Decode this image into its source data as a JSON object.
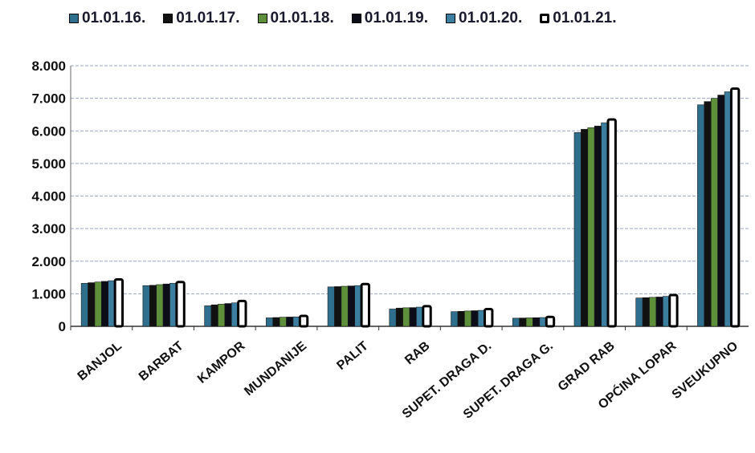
{
  "chart_data": {
    "type": "bar",
    "categories": [
      "BANJOL",
      "BARBAT",
      "KAMPOR",
      "MUNDANIJE",
      "PALIT",
      "RAB",
      "SUPET. DRAGA D.",
      "SUPET. DRAGA G.",
      "GRAD RAB",
      "OPĆINA LOPAR",
      "SVEUKUPNO"
    ],
    "series": [
      {
        "name": "01.01.16.",
        "color": "#2e6f8e",
        "values": [
          1320,
          1250,
          630,
          260,
          1210,
          530,
          450,
          250,
          5950,
          870,
          6800
        ]
      },
      {
        "name": "01.01.17.",
        "color": "#111111",
        "values": [
          1340,
          1260,
          660,
          270,
          1220,
          560,
          460,
          255,
          6050,
          880,
          6900
        ]
      },
      {
        "name": "01.01.18.",
        "color": "#5e8f3a",
        "values": [
          1360,
          1280,
          680,
          280,
          1230,
          570,
          470,
          260,
          6100,
          890,
          7000
        ]
      },
      {
        "name": "01.01.19.",
        "color": "#0d0d1a",
        "values": [
          1380,
          1300,
          700,
          285,
          1240,
          575,
          480,
          265,
          6150,
          900,
          7100
        ]
      },
      {
        "name": "01.01.20.",
        "color": "#3b7ea0",
        "values": [
          1400,
          1320,
          720,
          290,
          1250,
          590,
          490,
          270,
          6250,
          920,
          7200
        ]
      },
      {
        "name": "01.01.21.",
        "color": "#ffffff",
        "values": [
          1440,
          1360,
          780,
          320,
          1300,
          620,
          530,
          290,
          6350,
          960,
          7300
        ]
      }
    ],
    "yticks": [
      "0",
      "1.000",
      "2.000",
      "3.000",
      "4.000",
      "5.000",
      "6.000",
      "7.000",
      "8.000"
    ],
    "ylim": [
      0,
      8000
    ],
    "grid": true,
    "legend": "top"
  }
}
